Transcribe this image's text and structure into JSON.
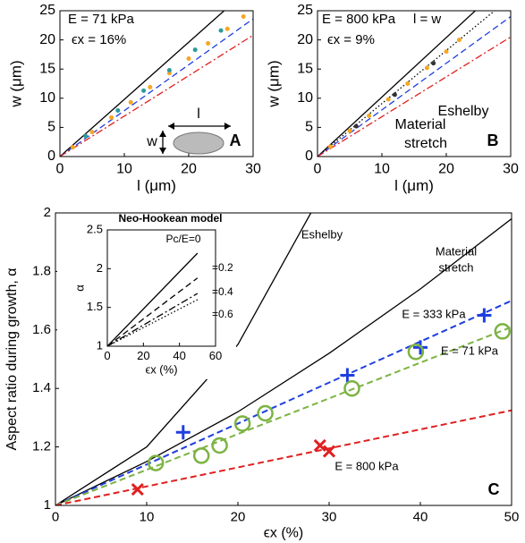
{
  "chart_data": [
    {
      "type": "line",
      "panel_label": "A",
      "xlabel": "l (μm)",
      "ylabel": "w (μm)",
      "xlim": [
        0,
        30
      ],
      "ylim": [
        0,
        25
      ],
      "xticks": [
        0,
        10,
        20,
        30
      ],
      "yticks": [
        0,
        5,
        10,
        15,
        20,
        25
      ],
      "annotations": [
        "E = 71 kPa",
        "ϵx = 16%",
        "l",
        "w"
      ],
      "series": [
        {
          "color": "#000000",
          "style": "solid",
          "x": [
            0,
            25.5
          ],
          "values": [
            0,
            25
          ]
        },
        {
          "color": "#1f3fe0",
          "style": "dashed",
          "x": [
            0,
            30
          ],
          "values": [
            0,
            23.6
          ]
        },
        {
          "color": "#e02020",
          "style": "dashdot",
          "x": [
            0,
            30
          ],
          "values": [
            0,
            20.8
          ]
        },
        {
          "color": "#f5a623",
          "marker": "dot",
          "x": [
            2,
            5,
            8,
            11,
            14,
            17,
            20,
            23,
            26,
            28.5
          ],
          "values": [
            1.6,
            4.2,
            6.7,
            9.3,
            11.9,
            14.3,
            16.8,
            19.4,
            21.9,
            24
          ]
        },
        {
          "color": "#2b9c9c",
          "marker": "dot",
          "x": [
            4,
            9,
            13,
            17,
            21,
            25
          ],
          "values": [
            3.5,
            7.9,
            11.3,
            14.8,
            18.3,
            21.6
          ]
        }
      ]
    },
    {
      "type": "line",
      "panel_label": "B",
      "xlabel": "l (μm)",
      "ylabel": "w (μm)",
      "xlim": [
        0,
        30
      ],
      "ylim": [
        0,
        25
      ],
      "xticks": [
        0,
        10,
        20,
        30
      ],
      "yticks": [
        0,
        5,
        10,
        15,
        20,
        25
      ],
      "annotations": [
        "E = 800 kPa",
        "ϵx = 9%",
        "l = w",
        "Eshelby",
        "Material",
        "stretch"
      ],
      "series": [
        {
          "color": "#000000",
          "style": "solid",
          "x": [
            0,
            24.5
          ],
          "values": [
            0,
            25
          ]
        },
        {
          "color": "#000000",
          "style": "dotted",
          "x": [
            0,
            27.5
          ],
          "values": [
            0,
            25
          ]
        },
        {
          "color": "#1f3fe0",
          "style": "dashed",
          "x": [
            0,
            30
          ],
          "values": [
            0,
            24
          ]
        },
        {
          "color": "#e02020",
          "style": "dashdot",
          "x": [
            0,
            30
          ],
          "values": [
            0,
            20.5
          ]
        },
        {
          "color": "#f5a623",
          "marker": "dot",
          "x": [
            2,
            5,
            8,
            11,
            14,
            17,
            20,
            22
          ],
          "values": [
            1.7,
            4.4,
            7,
            9.8,
            12.5,
            15.2,
            18,
            20
          ]
        },
        {
          "color": "#333333",
          "marker": "dot",
          "x": [
            6,
            12,
            18
          ],
          "values": [
            5.2,
            10.6,
            16
          ]
        }
      ]
    },
    {
      "type": "line",
      "panel_label": "C",
      "xlabel": "ϵx (%)",
      "ylabel": "Aspect ratio during growth, α",
      "xlim": [
        0,
        50
      ],
      "ylim": [
        1,
        2
      ],
      "xticks": [
        0,
        10,
        20,
        30,
        40,
        50
      ],
      "yticks": [
        1,
        1.2,
        1.4,
        1.6,
        1.8,
        2
      ],
      "annotations": [
        "Eshelby",
        "Material",
        "stretch",
        "E = 333 kPa",
        "E = 71 kPa",
        "E = 800 kPa"
      ],
      "series": [
        {
          "color": "#000000",
          "style": "solid",
          "x": [
            0,
            10,
            20,
            28
          ],
          "values": [
            1,
            1.2,
            1.55,
            2
          ]
        },
        {
          "color": "#000000",
          "style": "solid",
          "x": [
            0,
            10,
            20,
            30,
            40,
            50
          ],
          "values": [
            1,
            1.15,
            1.32,
            1.52,
            1.74,
            1.98
          ]
        },
        {
          "color": "#1f3fe0",
          "style": "dashed",
          "x": [
            0,
            50
          ],
          "values": [
            1,
            1.7
          ]
        },
        {
          "color": "#7cb342",
          "style": "dashed",
          "x": [
            0,
            50
          ],
          "values": [
            1,
            1.61
          ]
        },
        {
          "color": "#e02020",
          "style": "dashed",
          "x": [
            0,
            50
          ],
          "values": [
            1,
            1.325
          ]
        },
        {
          "color": "#1f3fe0",
          "marker": "plus",
          "x": [
            14,
            32,
            40,
            47
          ],
          "values": [
            1.25,
            1.445,
            1.54,
            1.65
          ]
        },
        {
          "color": "#7cb342",
          "marker": "circle",
          "x": [
            11,
            16,
            18,
            20.5,
            23,
            32.5,
            39.5,
            49
          ],
          "values": [
            1.145,
            1.17,
            1.205,
            1.28,
            1.315,
            1.4,
            1.525,
            1.595
          ]
        },
        {
          "color": "#e02020",
          "marker": "cross",
          "x": [
            9,
            29,
            30
          ],
          "values": [
            1.055,
            1.205,
            1.185
          ]
        }
      ]
    },
    {
      "type": "line",
      "title": "Neo-Hookean model",
      "xlabel": "ϵx (%)",
      "ylabel": "α",
      "xlim": [
        0,
        60
      ],
      "ylim": [
        1,
        2.5
      ],
      "xticks": [
        0,
        20,
        40,
        60
      ],
      "yticks": [
        1,
        1.5,
        2,
        2.5
      ],
      "annotations": [
        "Pc/E=0",
        "=0.2",
        "=0.4",
        "=0.6"
      ],
      "series": [
        {
          "color": "#000000",
          "style": "solid",
          "x": [
            0,
            50
          ],
          "values": [
            1,
            2.2
          ]
        },
        {
          "color": "#000000",
          "style": "dashed",
          "x": [
            0,
            50
          ],
          "values": [
            1,
            1.88
          ]
        },
        {
          "color": "#000000",
          "style": "dashdot",
          "x": [
            0,
            50
          ],
          "values": [
            1,
            1.68
          ]
        },
        {
          "color": "#000000",
          "style": "dotted",
          "x": [
            0,
            50
          ],
          "values": [
            1,
            1.6
          ]
        }
      ]
    }
  ]
}
